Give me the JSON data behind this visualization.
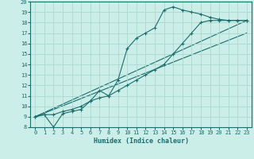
{
  "xlabel": "Humidex (Indice chaleur)",
  "xlim": [
    -0.5,
    23.5
  ],
  "ylim": [
    8,
    20
  ],
  "xticks": [
    0,
    1,
    2,
    3,
    4,
    5,
    6,
    7,
    8,
    9,
    10,
    11,
    12,
    13,
    14,
    15,
    16,
    17,
    18,
    19,
    20,
    21,
    22,
    23
  ],
  "yticks": [
    8,
    9,
    10,
    11,
    12,
    13,
    14,
    15,
    16,
    17,
    18,
    19,
    20
  ],
  "background_color": "#cceee8",
  "grid_color": "#aad8d0",
  "line_color": "#1a6e6e",
  "curve1_x": [
    0,
    1,
    2,
    3,
    4,
    5,
    6,
    7,
    8,
    9,
    10,
    11,
    12,
    13,
    14,
    15,
    16,
    17,
    18,
    19,
    20,
    21,
    22,
    23
  ],
  "curve1_y": [
    9.0,
    9.2,
    8.0,
    9.3,
    9.5,
    9.7,
    10.5,
    11.5,
    11.0,
    12.5,
    15.5,
    16.5,
    17.0,
    17.5,
    19.2,
    19.5,
    19.2,
    19.0,
    18.8,
    18.5,
    18.3,
    18.2,
    18.2,
    18.2
  ],
  "curve2_x": [
    0,
    1,
    2,
    3,
    4,
    5,
    6,
    7,
    8,
    9,
    10,
    11,
    12,
    13,
    14,
    15,
    16,
    17,
    18,
    19,
    20,
    21,
    22,
    23
  ],
  "curve2_y": [
    9.0,
    9.2,
    9.2,
    9.5,
    9.7,
    10.0,
    10.5,
    10.8,
    11.0,
    11.5,
    12.0,
    12.5,
    13.0,
    13.5,
    14.0,
    15.0,
    16.0,
    17.0,
    18.0,
    18.2,
    18.2,
    18.2,
    18.2,
    18.2
  ],
  "line1_x": [
    0,
    23
  ],
  "line1_y": [
    9.0,
    18.2
  ],
  "line2_x": [
    0,
    23
  ],
  "line2_y": [
    9.0,
    17.0
  ]
}
